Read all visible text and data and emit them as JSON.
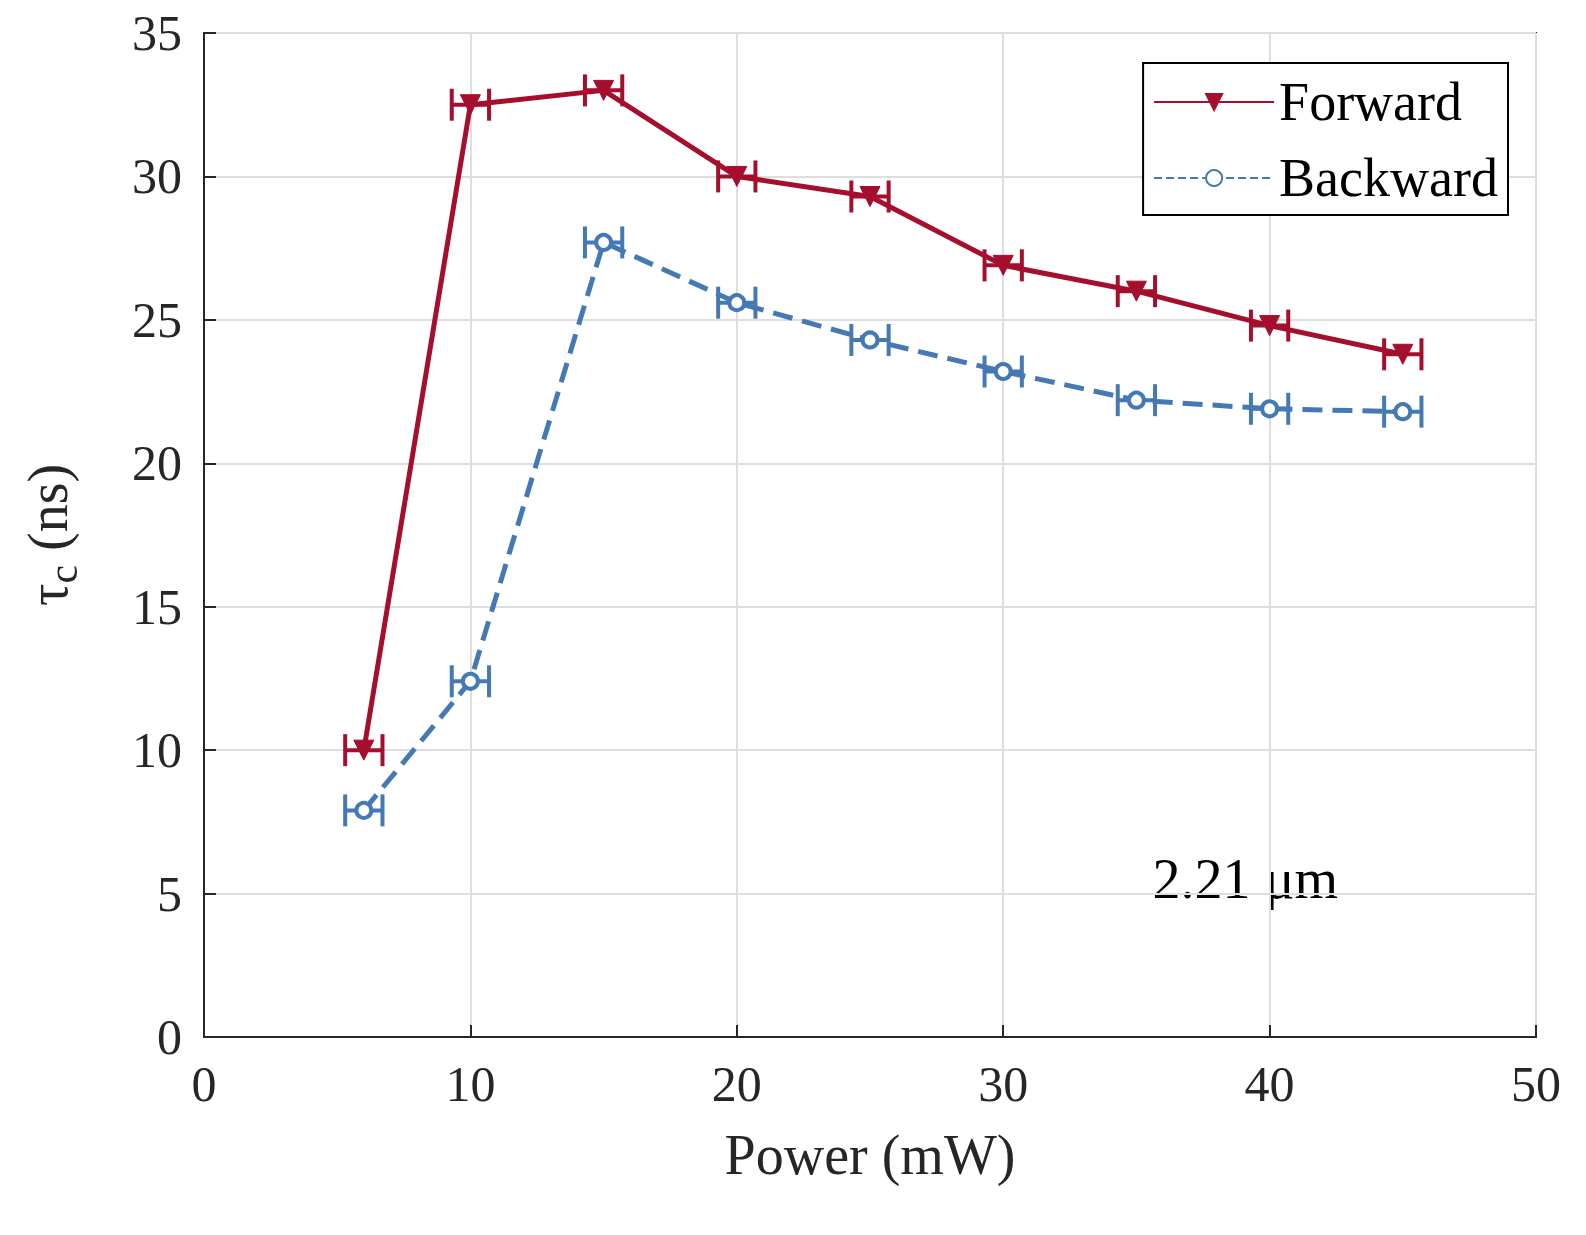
{
  "chart_data": {
    "type": "line",
    "xlabel": "Power (mW)",
    "ylabel": "τ$_{c}$ (ns)",
    "x": [
      6,
      10,
      15,
      20,
      25,
      30,
      35,
      40,
      45
    ],
    "series": [
      {
        "name": "Forward",
        "color": "#a50f2d",
        "marker": "triangle",
        "line_style": "solid",
        "values": [
          10,
          32.5,
          33.0,
          30.0,
          29.3,
          26.9,
          26.0,
          24.8,
          23.8
        ],
        "xerrors": [
          0.7,
          0.7,
          0.7,
          0.7,
          0.7,
          0.7,
          0.7,
          0.7,
          0.7
        ]
      },
      {
        "name": "Backward",
        "color": "#4479b3",
        "marker": "circle",
        "line_style": "dashed",
        "values": [
          7.9,
          12.4,
          27.7,
          25.6,
          24.3,
          23.2,
          22.2,
          21.9,
          21.8
        ],
        "xerrors": [
          0.7,
          0.7,
          0.7,
          0.7,
          0.7,
          0.7,
          0.7,
          0.7,
          0.7
        ]
      }
    ],
    "xlim": [
      0,
      50
    ],
    "xticks": [
      0,
      10,
      20,
      30,
      40,
      50
    ],
    "ylim": [
      0,
      35
    ],
    "yticks": [
      0,
      5,
      10,
      15,
      20,
      25,
      30,
      35
    ],
    "grid": true,
    "legend": "top right",
    "annotations": [
      "2.21 μm"
    ]
  }
}
